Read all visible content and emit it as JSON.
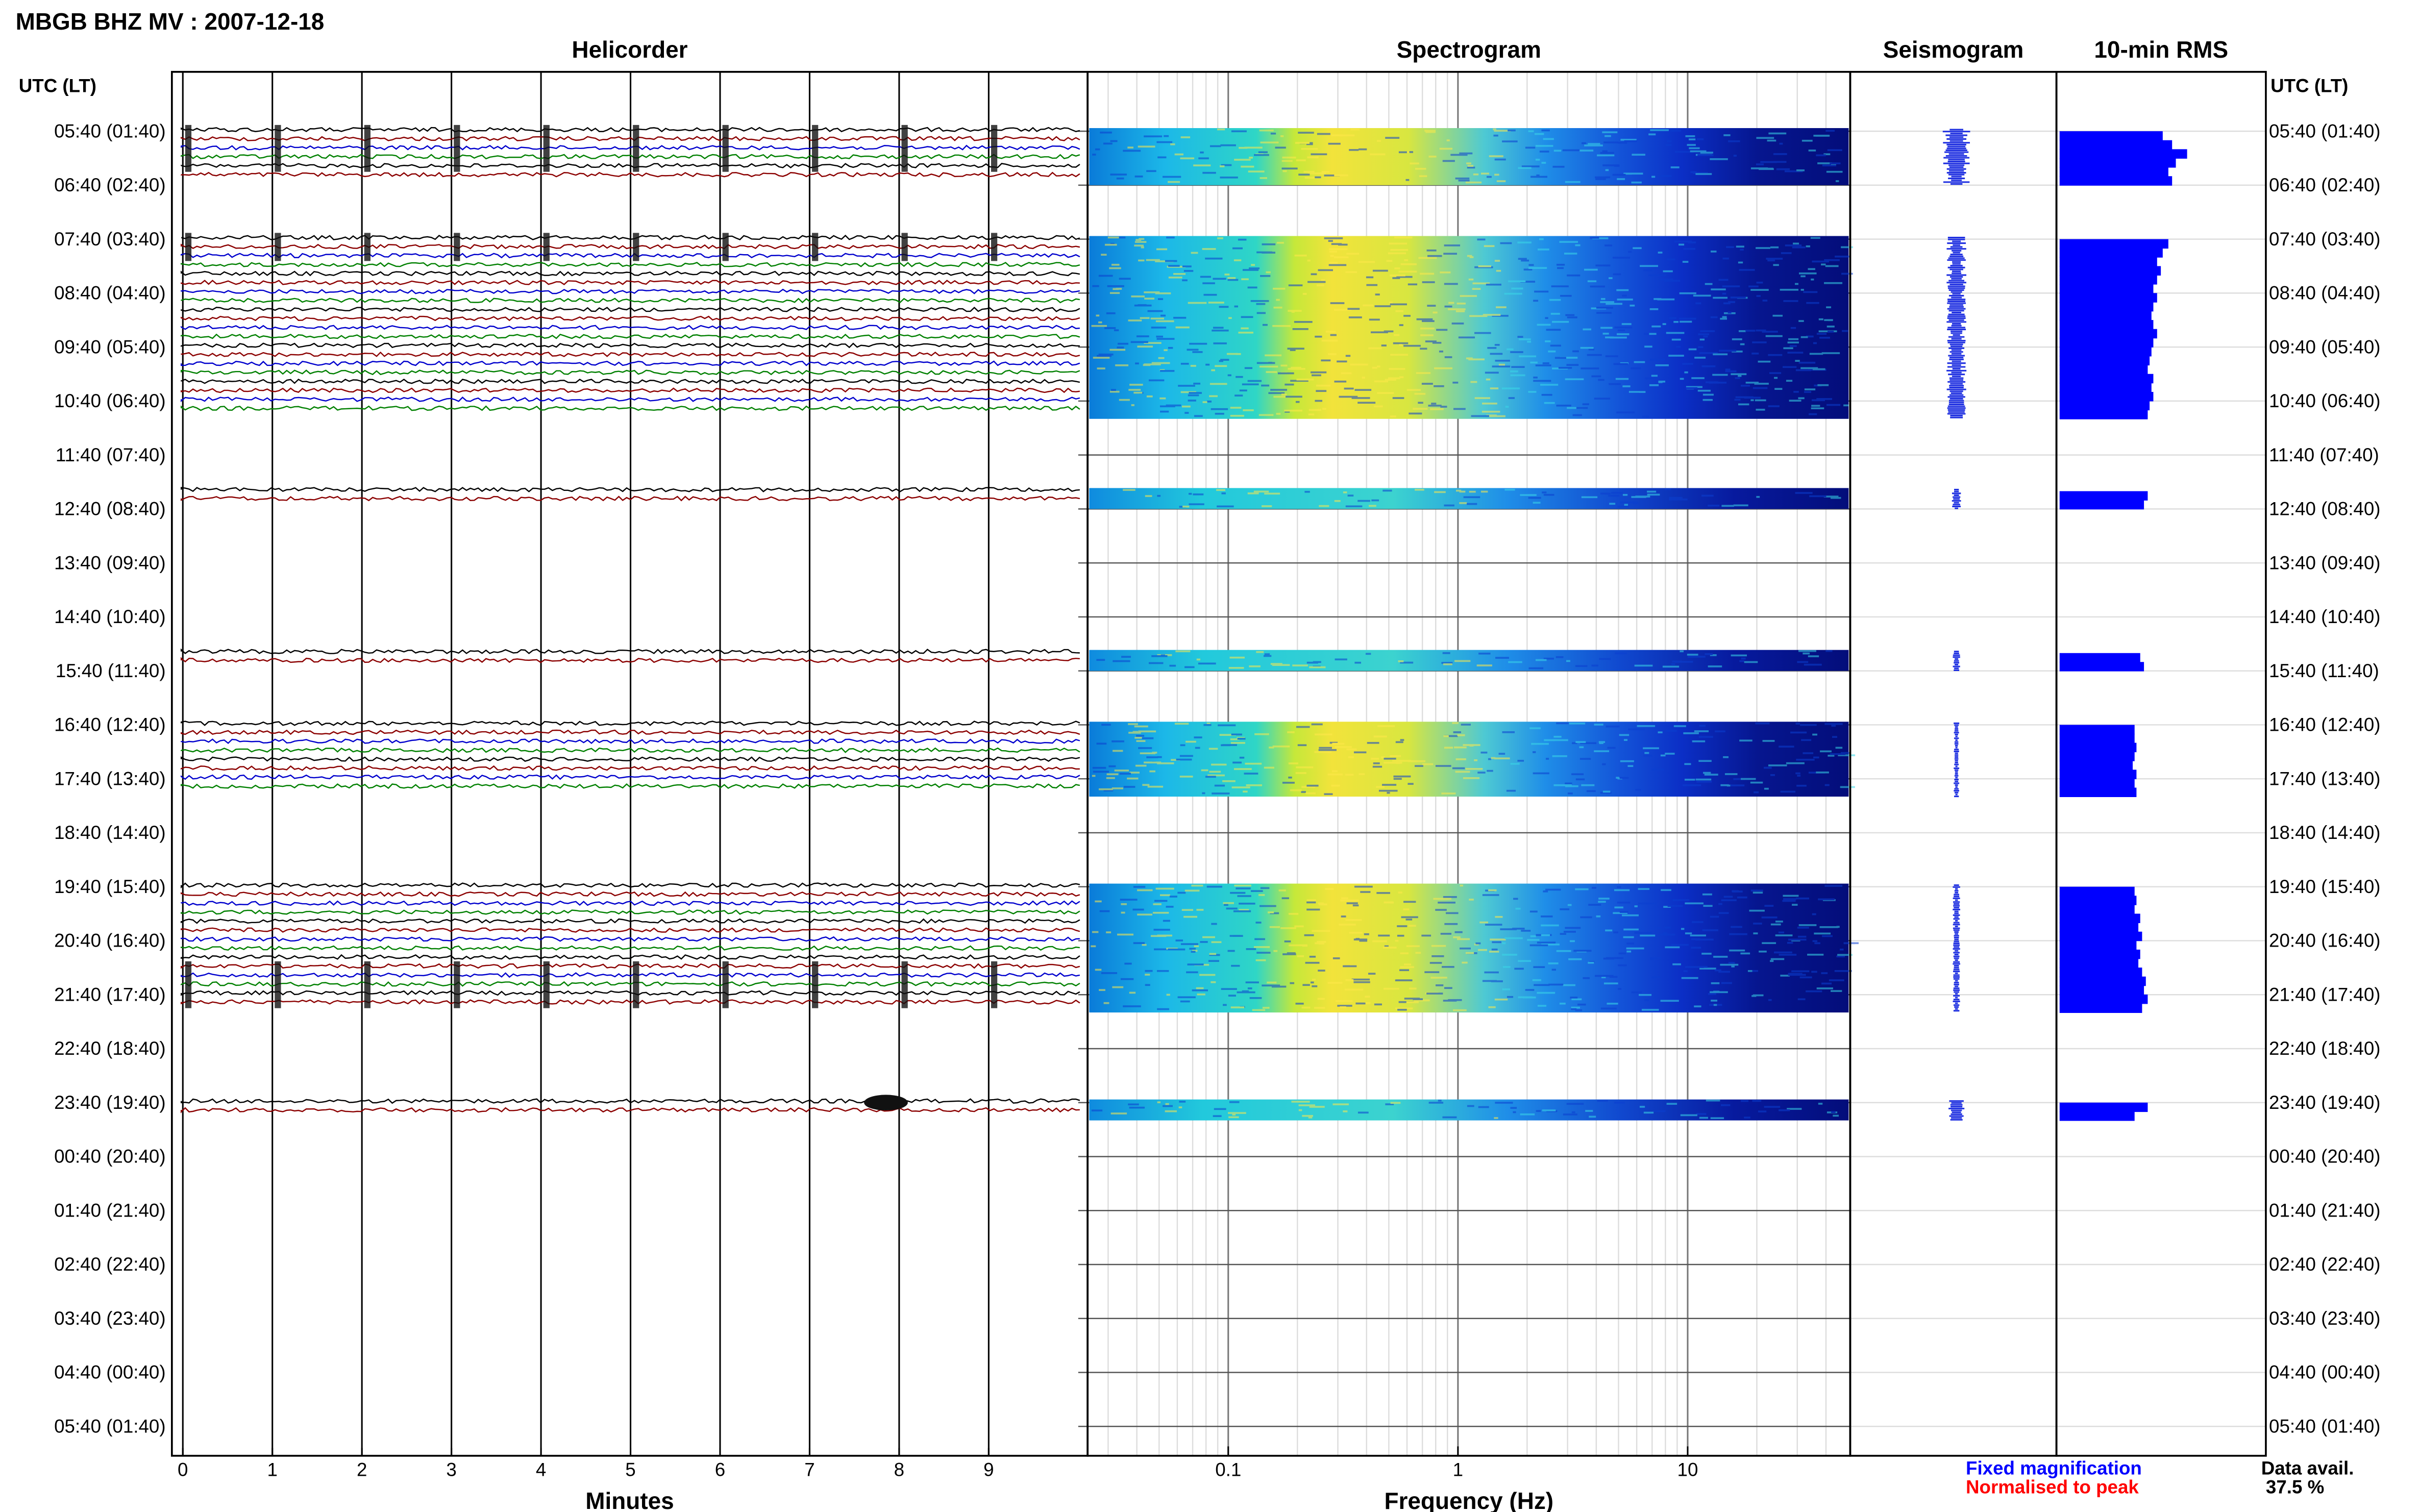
{
  "title": "MBGB BHZ MV : 2007-12-18",
  "panels": {
    "helicorder": "Helicorder",
    "spectrogram": "Spectrogram",
    "seismogram": "Seismogram",
    "rms": "10-min RMS"
  },
  "axis_header_left": "UTC (LT)",
  "axis_header_right": "UTC (LT)",
  "time_labels": [
    "05:40 (01:40)",
    "06:40 (02:40)",
    "07:40 (03:40)",
    "08:40 (04:40)",
    "09:40 (05:40)",
    "10:40 (06:40)",
    "11:40 (07:40)",
    "12:40 (08:40)",
    "13:40 (09:40)",
    "14:40 (10:40)",
    "15:40 (11:40)",
    "16:40 (12:40)",
    "17:40 (13:40)",
    "18:40 (14:40)",
    "19:40 (15:40)",
    "20:40 (16:40)",
    "21:40 (17:40)",
    "22:40 (18:40)",
    "23:40 (19:40)",
    "00:40 (20:40)",
    "01:40 (21:40)",
    "02:40 (22:40)",
    "03:40 (23:40)",
    "04:40 (00:40)",
    "05:40 (01:40)"
  ],
  "helicorder_xlabel": "Minutes",
  "helicorder_ticks": [
    "0",
    "1",
    "2",
    "3",
    "4",
    "5",
    "6",
    "7",
    "8",
    "9"
  ],
  "spectrogram_xlabel": "Frequency (Hz)",
  "spectrogram_ticks": [
    "0.1",
    "1",
    "10"
  ],
  "legend": {
    "fixed": "Fixed magnification",
    "normalised": "Normalised to peak",
    "fixed_color": "#0000ff",
    "normalised_color": "#ff0000"
  },
  "data_avail_label": "Data avail.",
  "data_avail_value": "37.5 %",
  "colors": {
    "trace1": "#000000",
    "trace2": "#8b0000",
    "trace3": "#0000cd",
    "trace4": "#008000",
    "rms_bar": "#0000ff"
  },
  "chart_data": {
    "type": "heatmap",
    "data_availability_percent": 37.5,
    "rows_hour_index_start_0540": [
      {
        "start": 0.0,
        "end": 1.0
      },
      {
        "start": 2.0,
        "end": 5.33
      },
      {
        "start": 6.67,
        "end": 7.0
      },
      {
        "start": 9.67,
        "end": 10.0
      },
      {
        "start": 11.0,
        "end": 12.33
      },
      {
        "start": 14.0,
        "end": 16.33
      },
      {
        "start": 18.0,
        "end": 18.33
      }
    ],
    "rms_relative": [
      [
        0.55,
        0.6,
        0.68,
        0.62,
        0.58,
        0.6
      ],
      [
        0.58,
        0.55,
        0.52,
        0.54,
        0.52,
        0.5,
        0.52,
        0.5,
        0.49,
        0.5,
        0.52,
        0.5,
        0.49,
        0.48,
        0.47,
        0.5,
        0.49,
        0.5,
        0.48,
        0.47
      ],
      [
        0.47,
        0.45
      ],
      [
        0.43,
        0.45
      ],
      [
        0.4,
        0.4,
        0.41,
        0.4,
        0.39,
        0.41,
        0.4,
        0.41
      ],
      [
        0.4,
        0.41,
        0.4,
        0.43,
        0.42,
        0.44,
        0.41,
        0.43,
        0.42,
        0.44,
        0.46,
        0.45,
        0.47,
        0.44
      ],
      [
        0.47,
        0.4
      ]
    ],
    "seismogram_relative_amplitude": [
      0.3,
      0.22,
      0.1,
      0.08,
      0.06,
      0.08,
      0.18
    ],
    "helicorder_events_minutes": [
      0.0,
      1.0,
      2.0,
      3.0,
      4.0,
      5.0,
      6.0,
      7.0,
      8.0,
      9.0
    ],
    "large_event": {
      "row_hour": 18.0,
      "minute": 7.8
    }
  }
}
